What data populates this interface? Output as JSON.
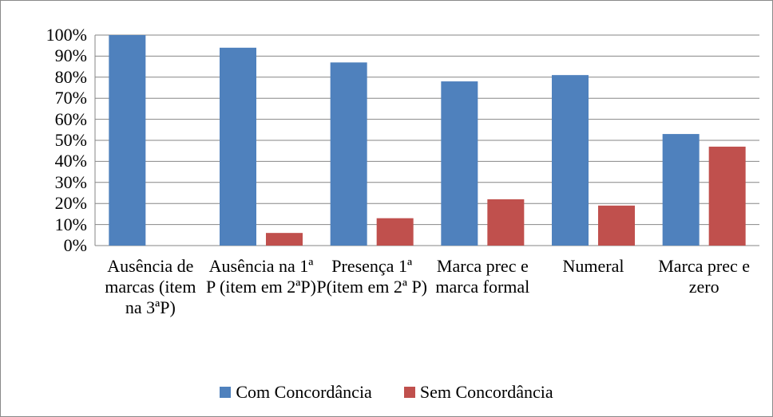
{
  "chart_data": {
    "type": "bar",
    "categories": [
      "Ausência de marcas (item na 3ªP)",
      "Ausência na 1ª P (item em 2ªP)",
      "Presença 1ª P(item em 2ª P)",
      "Marca prec e marca formal",
      "Numeral",
      "Marca prec e zero"
    ],
    "series": [
      {
        "name": "Com Concordância",
        "color": "#4f81bd",
        "values": [
          100,
          94,
          87,
          78,
          81,
          53
        ]
      },
      {
        "name": "Sem Concordância",
        "color": "#c0504d",
        "values": [
          0,
          6,
          13,
          22,
          19,
          47
        ]
      }
    ],
    "ylim": [
      0,
      100
    ],
    "yticks": [
      {
        "value": 0,
        "label": "0%"
      },
      {
        "value": 10,
        "label": "10%"
      },
      {
        "value": 20,
        "label": "20%"
      },
      {
        "value": 30,
        "label": "30%"
      },
      {
        "value": 40,
        "label": "40%"
      },
      {
        "value": 50,
        "label": "50%"
      },
      {
        "value": 60,
        "label": "60%"
      },
      {
        "value": 70,
        "label": "70%"
      },
      {
        "value": 80,
        "label": "80%"
      },
      {
        "value": 90,
        "label": "90%"
      },
      {
        "value": 100,
        "label": "100%"
      }
    ],
    "grid": true,
    "legend": "bottom"
  }
}
